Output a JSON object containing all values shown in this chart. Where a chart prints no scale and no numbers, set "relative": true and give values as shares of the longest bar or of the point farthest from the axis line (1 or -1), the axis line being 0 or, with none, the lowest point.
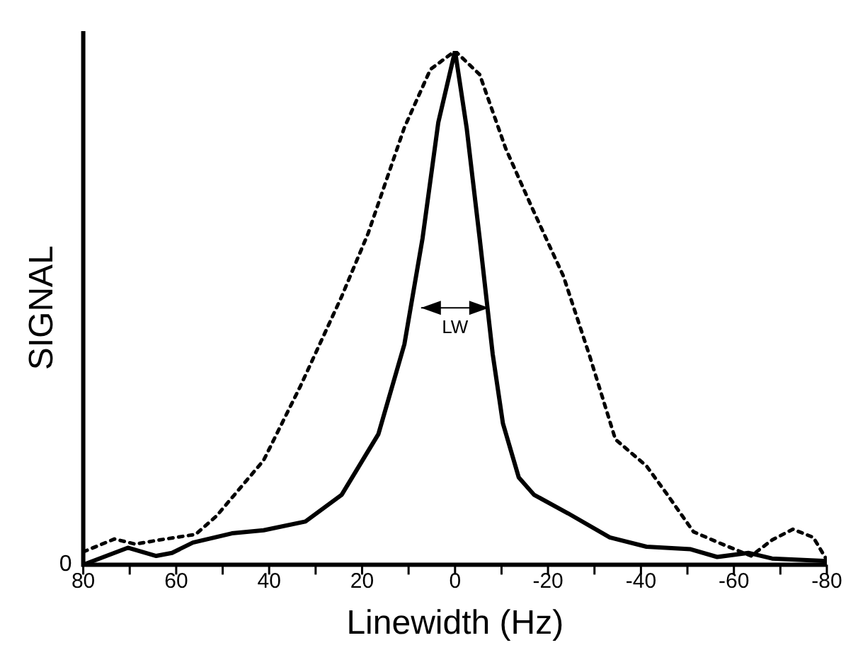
{
  "chart_data": {
    "type": "line",
    "relative": true,
    "xlabel": "Linewidth (Hz)",
    "ylabel": "SIGNAL",
    "xlim": [
      80,
      -80
    ],
    "xticks": [
      80,
      {
        "value": 70,
        "label": null
      },
      60,
      {
        "value": 50,
        "label": null
      },
      40,
      {
        "value": 30,
        "label": null
      },
      20,
      {
        "value": 10,
        "label": null
      },
      0,
      {
        "value": -10,
        "label": null
      },
      -20,
      {
        "value": -30,
        "label": null
      },
      -40,
      {
        "value": -50,
        "label": null
      },
      -60,
      {
        "value": -70,
        "label": null
      },
      -80
    ],
    "grid": false,
    "legend": false,
    "marker": "none",
    "series": [
      {
        "color": "#000000",
        "line_style": "solid",
        "x": [
          80,
          70.4,
          64.3,
          60.9,
          56.4,
          48,
          41.2,
          32.2,
          24.4,
          16.5,
          10.9,
          7,
          3.6,
          0,
          -2.5,
          -5.3,
          -8.1,
          -10.3,
          -13.7,
          -17,
          -24.3,
          -33.3,
          -41.2,
          -50.7,
          -56.4,
          -63.1,
          -68.2,
          -80
        ],
        "values": [
          0,
          0.033,
          0.017,
          0.023,
          0.043,
          0.061,
          0.067,
          0.084,
          0.136,
          0.254,
          0.429,
          0.635,
          0.861,
          1,
          0.85,
          0.635,
          0.41,
          0.275,
          0.17,
          0.136,
          0.1,
          0.053,
          0.035,
          0.03,
          0.015,
          0.023,
          0.012,
          0.007
        ]
      },
      {
        "color": "#000000",
        "line_style": "dotted",
        "x": [
          80,
          73.3,
          68.8,
          63.7,
          55.8,
          51.3,
          41.2,
          33.3,
          24.4,
          18.7,
          10.9,
          5.3,
          0,
          -5.3,
          -10.9,
          -16.5,
          -23.3,
          -28.9,
          -34.5,
          -41.2,
          -45.7,
          -51.3,
          -58,
          -63.7,
          -68.2,
          -72.7,
          -77.1,
          -79.8
        ],
        "values": [
          0.025,
          0.05,
          0.04,
          0.048,
          0.059,
          0.095,
          0.203,
          0.347,
          0.522,
          0.645,
          0.851,
          0.964,
          1,
          0.954,
          0.81,
          0.696,
          0.562,
          0.408,
          0.244,
          0.192,
          0.136,
          0.064,
          0.038,
          0.017,
          0.048,
          0.069,
          0.053,
          0.012
        ]
      }
    ],
    "annotations": [
      "0",
      "LW"
    ]
  }
}
